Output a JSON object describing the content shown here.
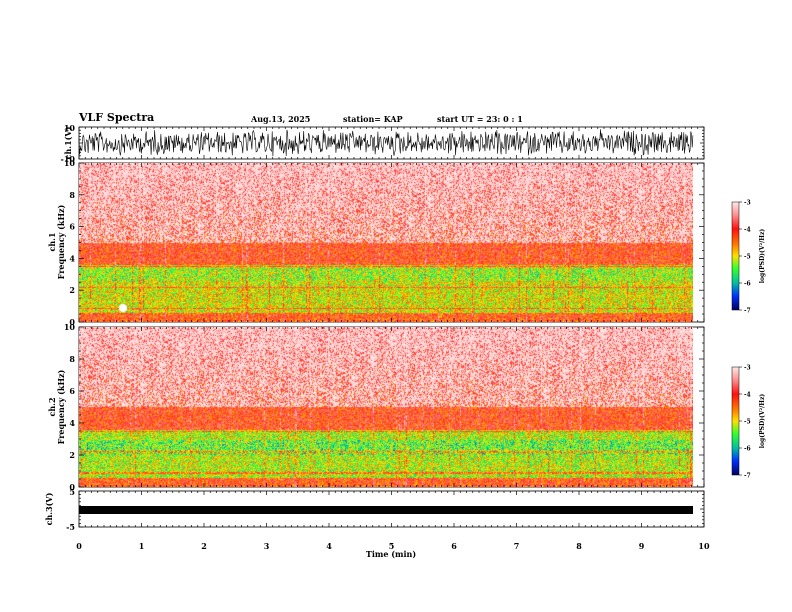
{
  "header": {
    "title": "VLF Spectra",
    "date": "Aug.13, 2025",
    "station": "station= KAP",
    "start": "start  UT  =   23: 0   : 1"
  },
  "chart_data": [
    {
      "type": "line",
      "panel": "ch1-waveform",
      "ylabel": "ch.1(V)",
      "ylim": [
        -10,
        10
      ],
      "yticks": [
        "10",
        "-10"
      ],
      "xlim": [
        0,
        10
      ]
    },
    {
      "type": "heatmap",
      "panel": "ch1-spectrogram",
      "ylabel": "ch.1\nFrequency (kHz)",
      "ylim": [
        0,
        10
      ],
      "yticks": [
        0,
        2,
        4,
        6,
        8,
        10
      ],
      "xlim": [
        0,
        10
      ],
      "colorbar": {
        "range": [
          -7,
          -3
        ],
        "ticks": [
          "-3",
          "-4",
          "-5",
          "-6",
          "-7"
        ],
        "label": "log(PSD)(V²/Hz)"
      }
    },
    {
      "type": "heatmap",
      "panel": "ch2-spectrogram",
      "ylabel": "ch.2\nFrequency (kHz)",
      "ylim": [
        0,
        10
      ],
      "yticks": [
        0,
        2,
        4,
        6,
        8,
        10
      ],
      "xlim": [
        0,
        10
      ],
      "colorbar": {
        "range": [
          -7,
          -3
        ],
        "ticks": [
          "-3",
          "-4",
          "-5",
          "-6",
          "-7"
        ],
        "label": "log(PSD)(V²/Hz)"
      }
    },
    {
      "type": "line",
      "panel": "ch3-waveform",
      "ylabel": "ch.3(V)",
      "ylim": [
        -5,
        5
      ],
      "yticks": [
        "5",
        "-5"
      ],
      "xlim": [
        0,
        10
      ]
    }
  ],
  "xaxis": {
    "label": "Time (min)",
    "ticks": [
      "0",
      "1",
      "2",
      "3",
      "4",
      "5",
      "6",
      "7",
      "8",
      "9",
      "10"
    ]
  },
  "colors": {
    "red": "#ff2020",
    "yellow": "#ffe000",
    "green": "#30ff30",
    "blue": "#0000c0"
  }
}
